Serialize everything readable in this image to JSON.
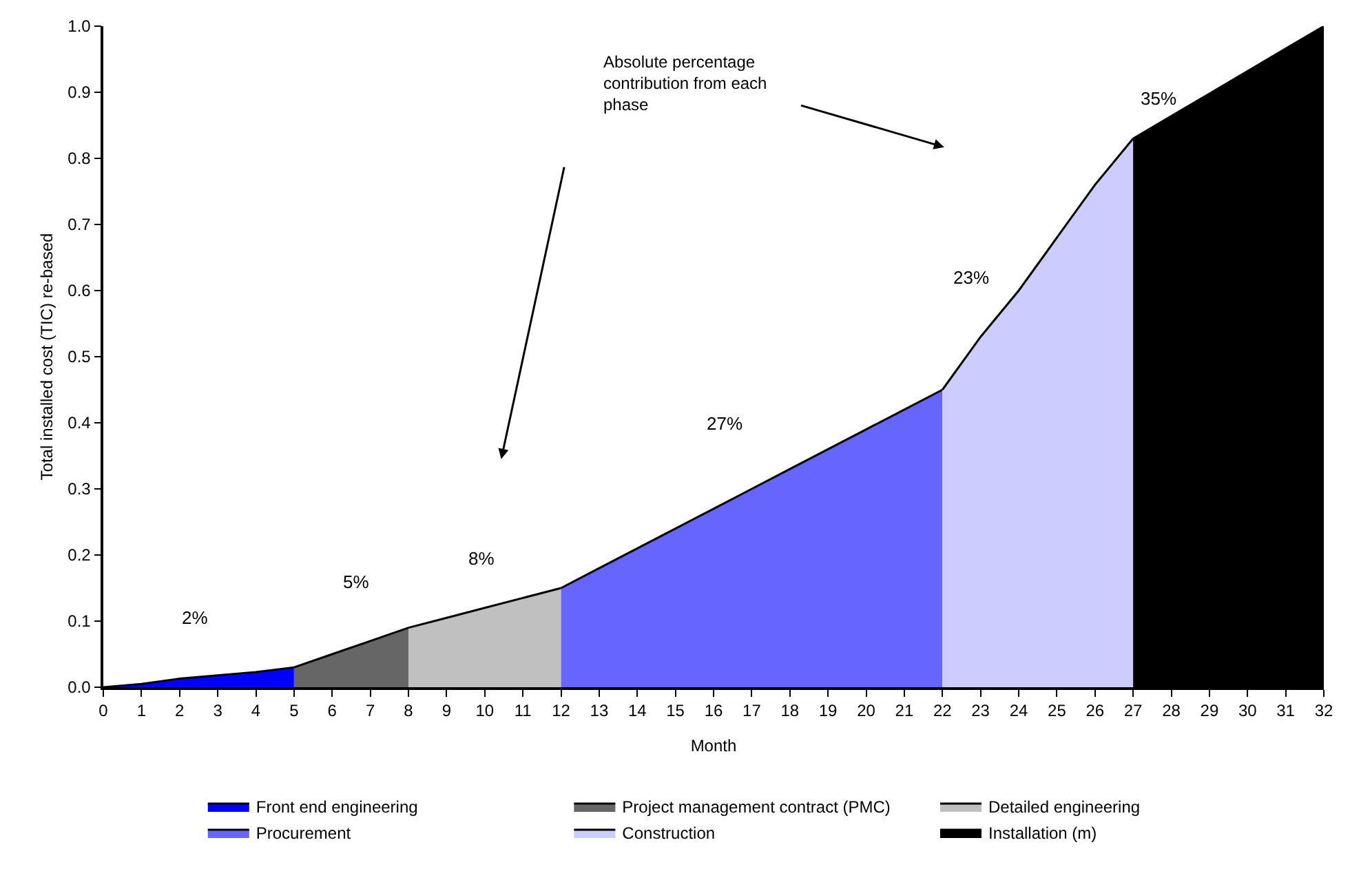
{
  "chart_data": {
    "type": "area",
    "xlabel": "Month",
    "ylabel": "Total installed cost (TIC) re-based",
    "xlim": [
      0,
      32
    ],
    "xticks": [
      0,
      1,
      2,
      3,
      4,
      5,
      6,
      7,
      8,
      9,
      10,
      11,
      12,
      13,
      14,
      15,
      16,
      17,
      18,
      19,
      20,
      21,
      22,
      23,
      24,
      25,
      26,
      27,
      28,
      29,
      30,
      31,
      32
    ],
    "ylim": [
      0,
      1
    ],
    "yticks": [
      {
        "value": 0,
        "label": "0.0"
      },
      0.1,
      0.2,
      0.3,
      0.4,
      0.5,
      0.6,
      0.7,
      0.8,
      0.9,
      {
        "value": 1,
        "label": "1.0"
      }
    ],
    "legend": "bottom",
    "series": [
      {
        "name": "Front end engineering",
        "color": "#0000ff",
        "x": [
          0,
          1,
          2,
          3,
          4,
          5
        ],
        "values": [
          0,
          0.005,
          0.013,
          0.018,
          0.023,
          0.03
        ]
      },
      {
        "name": "Project management contract (PMC)",
        "color": "#666666",
        "x": [
          5,
          6,
          7,
          8
        ],
        "values": [
          0.03,
          0.05,
          0.07,
          0.09
        ]
      },
      {
        "name": "Detailed engineering",
        "color": "#c0c0c0",
        "x": [
          8,
          9,
          10,
          11,
          12
        ],
        "values": [
          0.09,
          0.105,
          0.12,
          0.135,
          0.15
        ]
      },
      {
        "name": "Procurement",
        "color": "#6666ff",
        "x": [
          12,
          13,
          14,
          15,
          16,
          17,
          18,
          19,
          20,
          21,
          22
        ],
        "values": [
          0.15,
          0.18,
          0.21,
          0.24,
          0.27,
          0.3,
          0.33,
          0.36,
          0.39,
          0.42,
          0.45
        ]
      },
      {
        "name": "Construction",
        "color": "#ccccff",
        "x": [
          22,
          23,
          24,
          25,
          26,
          27
        ],
        "values": [
          0.45,
          0.53,
          0.6,
          0.68,
          0.76,
          0.83
        ]
      },
      {
        "name": "Installation (m)",
        "color": "#000000",
        "x": [
          27,
          28,
          29,
          30,
          31,
          32
        ],
        "values": [
          0.83,
          0.864,
          0.898,
          0.932,
          0.966,
          1.0
        ]
      }
    ],
    "annotations": [
      "2%",
      "5%",
      "8%",
      "27%",
      "23%",
      "35%",
      "Absolute percentage contribution from each phase"
    ]
  }
}
